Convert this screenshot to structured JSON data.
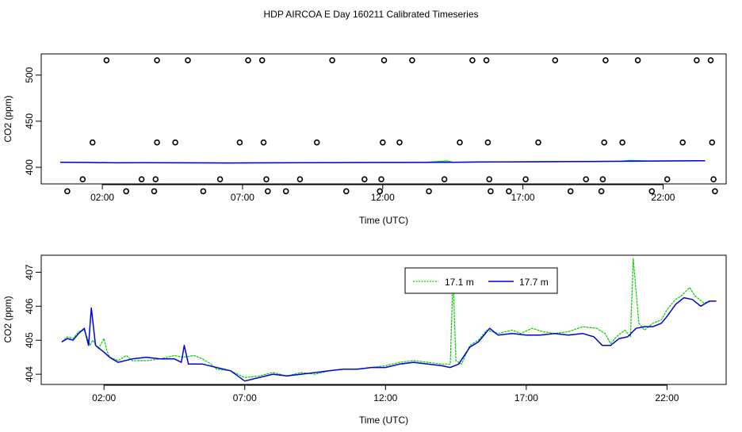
{
  "title": "HDP AIRCOA E  Day 160211  Calibrated Timeseries",
  "chart_data": [
    {
      "type": "scatter",
      "xlabel": "Time (UTC)",
      "ylabel": "CO2 (ppm)",
      "xticks": [
        {
          "v": 2,
          "label": "02:00"
        },
        {
          "v": 7,
          "label": "07:00"
        },
        {
          "v": 12,
          "label": "12:00"
        },
        {
          "v": 17,
          "label": "17:00"
        },
        {
          "v": 22,
          "label": "22:00"
        }
      ],
      "yticks": [
        {
          "v": 400,
          "label": "400"
        },
        {
          "v": 450,
          "label": "450"
        },
        {
          "v": 500,
          "label": "500"
        }
      ],
      "xlim": [
        -0.18,
        24.25
      ],
      "ylim": [
        382,
        523
      ],
      "grid": false,
      "series": [
        {
          "color": "#00cc00",
          "points": [
            [
              0.5,
              405.6
            ],
            [
              1.5,
              405.3
            ],
            [
              2.5,
              405.0
            ],
            [
              3.5,
              405.1
            ],
            [
              4.5,
              405.0
            ],
            [
              5.5,
              404.9
            ],
            [
              6.5,
              404.8
            ],
            [
              7.5,
              404.9
            ],
            [
              8.5,
              405.0
            ],
            [
              9.5,
              405.0
            ],
            [
              10.5,
              405.1
            ],
            [
              11.5,
              405.2
            ],
            [
              12.5,
              405.3
            ],
            [
              13.5,
              405.4
            ],
            [
              14.3,
              406.9
            ],
            [
              14.5,
              405.6
            ],
            [
              15.5,
              405.9
            ],
            [
              16.5,
              406.0
            ],
            [
              17.5,
              406.2
            ],
            [
              18.5,
              406.4
            ],
            [
              19.5,
              406.5
            ],
            [
              20.5,
              406.7
            ],
            [
              20.8,
              407.5
            ],
            [
              21.5,
              406.9
            ],
            [
              22.5,
              407.1
            ],
            [
              23.5,
              407.3
            ]
          ]
        },
        {
          "color": "#0000ee",
          "points": [
            [
              0.5,
              405.4
            ],
            [
              1.5,
              405.2
            ],
            [
              2.5,
              404.9
            ],
            [
              3.5,
              405.0
            ],
            [
              4.5,
              404.9
            ],
            [
              5.5,
              404.8
            ],
            [
              6.5,
              404.7
            ],
            [
              7.5,
              404.8
            ],
            [
              8.5,
              404.9
            ],
            [
              9.5,
              405.0
            ],
            [
              10.5,
              405.1
            ],
            [
              11.5,
              405.2
            ],
            [
              12.5,
              405.2
            ],
            [
              13.5,
              405.3
            ],
            [
              14.5,
              405.4
            ],
            [
              15.5,
              405.7
            ],
            [
              16.5,
              405.9
            ],
            [
              17.5,
              406.0
            ],
            [
              18.5,
              406.2
            ],
            [
              19.5,
              406.3
            ],
            [
              20.5,
              406.5
            ],
            [
              21.5,
              406.7
            ],
            [
              22.5,
              406.9
            ],
            [
              23.5,
              407.1
            ]
          ]
        }
      ],
      "calibration_points": [
        [
          0.75,
          374
        ],
        [
          1.3,
          387
        ],
        [
          1.65,
          427
        ],
        [
          2.15,
          516
        ],
        [
          2.85,
          374
        ],
        [
          3.4,
          387
        ],
        [
          3.85,
          374
        ],
        [
          3.9,
          387
        ],
        [
          3.95,
          427
        ],
        [
          3.95,
          516
        ],
        [
          4.6,
          427
        ],
        [
          5.05,
          516
        ],
        [
          5.6,
          374
        ],
        [
          6.2,
          387
        ],
        [
          6.9,
          427
        ],
        [
          7.2,
          516
        ],
        [
          7.7,
          516
        ],
        [
          7.75,
          427
        ],
        [
          7.85,
          387
        ],
        [
          7.9,
          374
        ],
        [
          8.55,
          374
        ],
        [
          9.05,
          387
        ],
        [
          9.65,
          427
        ],
        [
          10.2,
          516
        ],
        [
          10.7,
          374
        ],
        [
          11.35,
          387
        ],
        [
          11.9,
          374
        ],
        [
          11.95,
          387
        ],
        [
          12.0,
          427
        ],
        [
          12.05,
          516
        ],
        [
          12.6,
          427
        ],
        [
          13.05,
          516
        ],
        [
          13.65,
          374
        ],
        [
          14.2,
          387
        ],
        [
          14.75,
          427
        ],
        [
          15.2,
          516
        ],
        [
          15.7,
          516
        ],
        [
          15.75,
          427
        ],
        [
          15.8,
          387
        ],
        [
          15.85,
          374
        ],
        [
          16.5,
          374
        ],
        [
          17.1,
          387
        ],
        [
          17.55,
          427
        ],
        [
          18.15,
          516
        ],
        [
          18.7,
          374
        ],
        [
          19.25,
          387
        ],
        [
          19.8,
          374
        ],
        [
          19.85,
          387
        ],
        [
          19.9,
          427
        ],
        [
          19.95,
          516
        ],
        [
          20.55,
          427
        ],
        [
          21.1,
          516
        ],
        [
          21.6,
          374
        ],
        [
          22.15,
          387
        ],
        [
          22.7,
          427
        ],
        [
          23.2,
          516
        ],
        [
          23.7,
          516
        ],
        [
          23.75,
          427
        ],
        [
          23.8,
          387
        ],
        [
          23.85,
          374
        ]
      ]
    },
    {
      "type": "line",
      "xlabel": "Time (UTC)",
      "ylabel": "CO2 (ppm)",
      "xticks": [
        {
          "v": 2,
          "label": "02:00"
        },
        {
          "v": 7,
          "label": "07:00"
        },
        {
          "v": 12,
          "label": "12:00"
        },
        {
          "v": 17,
          "label": "17:00"
        },
        {
          "v": 22,
          "label": "22:00"
        }
      ],
      "yticks": [
        {
          "v": 404,
          "label": "404"
        },
        {
          "v": 405,
          "label": "405"
        },
        {
          "v": 406,
          "label": "406"
        },
        {
          "v": 407,
          "label": "407"
        }
      ],
      "xlim": [
        -0.23,
        24.1
      ],
      "ylim": [
        403.7,
        407.5
      ],
      "grid": false,
      "legend_position": "top-right",
      "series": [
        {
          "name": "17.1 m",
          "color": "#00cc00",
          "points": [
            [
              0.5,
              404.95
            ],
            [
              0.7,
              405.1
            ],
            [
              0.9,
              405.05
            ],
            [
              1.1,
              405.25
            ],
            [
              1.3,
              405.3
            ],
            [
              1.5,
              404.85
            ],
            [
              1.6,
              405.0
            ],
            [
              1.8,
              404.75
            ],
            [
              2.0,
              405.05
            ],
            [
              2.1,
              404.7
            ],
            [
              2.2,
              404.5
            ],
            [
              2.5,
              404.4
            ],
            [
              2.8,
              404.55
            ],
            [
              3.0,
              404.4
            ],
            [
              3.5,
              404.4
            ],
            [
              4.0,
              404.45
            ],
            [
              4.5,
              404.55
            ],
            [
              4.8,
              404.5
            ],
            [
              5.2,
              404.55
            ],
            [
              5.5,
              404.45
            ],
            [
              5.8,
              404.3
            ],
            [
              6.0,
              404.15
            ],
            [
              6.5,
              404.1
            ],
            [
              7.0,
              403.9
            ],
            [
              7.5,
              403.95
            ],
            [
              8.0,
              404.05
            ],
            [
              8.5,
              403.95
            ],
            [
              9.0,
              404.05
            ],
            [
              9.5,
              404.0
            ],
            [
              10.0,
              404.1
            ],
            [
              10.5,
              404.15
            ],
            [
              11.0,
              404.15
            ],
            [
              11.5,
              404.2
            ],
            [
              12.0,
              404.25
            ],
            [
              12.5,
              404.35
            ],
            [
              13.0,
              404.4
            ],
            [
              13.5,
              404.35
            ],
            [
              14.0,
              404.3
            ],
            [
              14.3,
              404.3
            ],
            [
              14.4,
              406.9
            ],
            [
              14.5,
              404.4
            ],
            [
              14.7,
              404.3
            ],
            [
              15.0,
              404.85
            ],
            [
              15.3,
              405.0
            ],
            [
              15.6,
              405.3
            ],
            [
              16.0,
              405.2
            ],
            [
              16.5,
              405.3
            ],
            [
              16.8,
              405.2
            ],
            [
              17.2,
              405.35
            ],
            [
              17.6,
              405.25
            ],
            [
              18.0,
              405.2
            ],
            [
              18.5,
              405.25
            ],
            [
              19.0,
              405.4
            ],
            [
              19.5,
              405.35
            ],
            [
              19.8,
              405.2
            ],
            [
              20.0,
              404.9
            ],
            [
              20.2,
              405.1
            ],
            [
              20.5,
              405.3
            ],
            [
              20.7,
              405.1
            ],
            [
              20.8,
              407.4
            ],
            [
              21.0,
              405.5
            ],
            [
              21.2,
              405.3
            ],
            [
              21.5,
              405.5
            ],
            [
              21.8,
              405.6
            ],
            [
              22.0,
              405.9
            ],
            [
              22.3,
              406.2
            ],
            [
              22.5,
              406.3
            ],
            [
              22.8,
              406.55
            ],
            [
              23.0,
              406.3
            ],
            [
              23.3,
              406.1
            ],
            [
              23.6,
              406.15
            ]
          ]
        },
        {
          "name": "17.7 m",
          "color": "#0000dd",
          "points": [
            [
              0.5,
              404.95
            ],
            [
              0.7,
              405.05
            ],
            [
              0.9,
              405.0
            ],
            [
              1.1,
              405.2
            ],
            [
              1.3,
              405.35
            ],
            [
              1.45,
              404.85
            ],
            [
              1.55,
              405.95
            ],
            [
              1.7,
              404.85
            ],
            [
              2.0,
              404.65
            ],
            [
              2.2,
              404.5
            ],
            [
              2.5,
              404.35
            ],
            [
              3.0,
              404.45
            ],
            [
              3.5,
              404.5
            ],
            [
              4.0,
              404.45
            ],
            [
              4.5,
              404.45
            ],
            [
              4.75,
              404.35
            ],
            [
              4.85,
              404.85
            ],
            [
              5.0,
              404.3
            ],
            [
              5.5,
              404.3
            ],
            [
              6.0,
              404.2
            ],
            [
              6.5,
              404.1
            ],
            [
              7.0,
              403.8
            ],
            [
              7.5,
              403.9
            ],
            [
              8.0,
              404.0
            ],
            [
              8.5,
              403.95
            ],
            [
              9.0,
              404.0
            ],
            [
              9.5,
              404.05
            ],
            [
              10.0,
              404.1
            ],
            [
              10.5,
              404.15
            ],
            [
              11.0,
              404.15
            ],
            [
              11.5,
              404.2
            ],
            [
              12.0,
              404.2
            ],
            [
              12.5,
              404.3
            ],
            [
              13.0,
              404.35
            ],
            [
              13.5,
              404.3
            ],
            [
              14.0,
              404.25
            ],
            [
              14.3,
              404.2
            ],
            [
              14.6,
              404.3
            ],
            [
              15.0,
              404.8
            ],
            [
              15.3,
              404.95
            ],
            [
              15.7,
              405.35
            ],
            [
              16.0,
              405.15
            ],
            [
              16.5,
              405.2
            ],
            [
              17.0,
              405.15
            ],
            [
              17.5,
              405.15
            ],
            [
              18.0,
              405.2
            ],
            [
              18.5,
              405.15
            ],
            [
              19.0,
              405.2
            ],
            [
              19.4,
              405.1
            ],
            [
              19.7,
              404.85
            ],
            [
              20.0,
              404.85
            ],
            [
              20.3,
              405.05
            ],
            [
              20.6,
              405.1
            ],
            [
              20.9,
              405.35
            ],
            [
              21.2,
              405.4
            ],
            [
              21.5,
              405.4
            ],
            [
              21.8,
              405.5
            ],
            [
              22.0,
              405.7
            ],
            [
              22.3,
              406.05
            ],
            [
              22.6,
              406.25
            ],
            [
              22.9,
              406.2
            ],
            [
              23.2,
              406.0
            ],
            [
              23.5,
              406.15
            ],
            [
              23.75,
              406.15
            ]
          ]
        }
      ]
    }
  ]
}
